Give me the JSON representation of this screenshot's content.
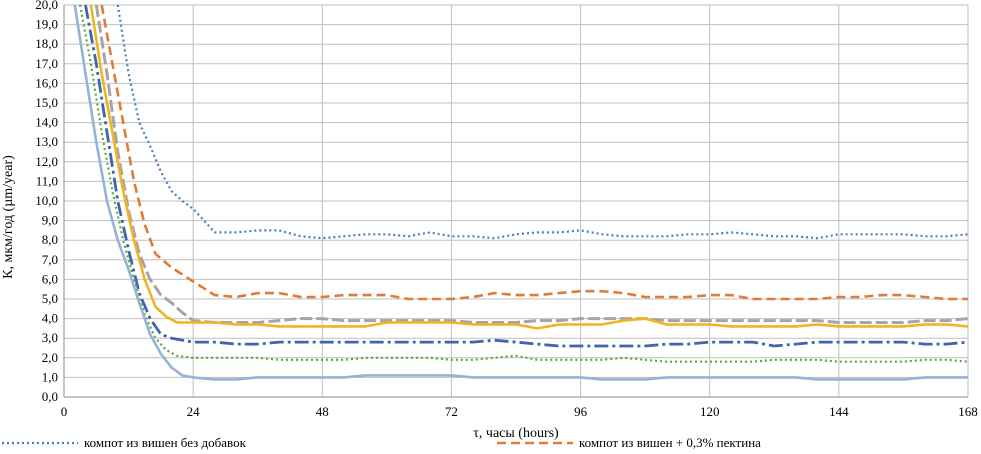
{
  "chart_data": {
    "type": "line",
    "xlabel": "τ, часы (hours)",
    "ylabel": "К, мкм/год (µm/year)",
    "xlim": [
      0,
      168
    ],
    "ylim": [
      0,
      20
    ],
    "x_ticks": [
      0,
      24,
      48,
      72,
      96,
      120,
      144,
      168
    ],
    "y_ticks": [
      "0,0",
      "1,0",
      "2,0",
      "3,0",
      "4,0",
      "5,0",
      "6,0",
      "7,0",
      "8,0",
      "9,0",
      "10,0",
      "11,0",
      "12,0",
      "13,0",
      "14,0",
      "15,0",
      "16,0",
      "17,0",
      "18,0",
      "19,0",
      "20,0"
    ],
    "grid": true,
    "legend_position": "bottom",
    "series": [
      {
        "name": "компот из вишен без добавок",
        "color": "#4a7ebb",
        "dash": "2,3",
        "width": 2.2,
        "legend_visible": true,
        "x": [
          10,
          12,
          14,
          16,
          18,
          20,
          22,
          24,
          26,
          28,
          32,
          36,
          40,
          44,
          48,
          52,
          56,
          60,
          64,
          68,
          72,
          76,
          80,
          84,
          88,
          92,
          96,
          100,
          104,
          108,
          112,
          116,
          120,
          124,
          128,
          132,
          136,
          140,
          144,
          148,
          152,
          156,
          160,
          164,
          168
        ],
        "values": [
          20,
          16.5,
          14,
          12.8,
          11.5,
          10.5,
          10,
          9.6,
          9,
          8.4,
          8.4,
          8.5,
          8.5,
          8.2,
          8.1,
          8.2,
          8.3,
          8.3,
          8.2,
          8.4,
          8.2,
          8.2,
          8.1,
          8.3,
          8.4,
          8.4,
          8.5,
          8.3,
          8.2,
          8.2,
          8.2,
          8.3,
          8.3,
          8.4,
          8.3,
          8.2,
          8.2,
          8.1,
          8.3,
          8.3,
          8.3,
          8.3,
          8.2,
          8.2,
          8.3
        ]
      },
      {
        "name": "компот из вишен + 0,3% пектина",
        "color": "#e07b39",
        "dash": "9,5",
        "width": 2.6,
        "legend_visible": true,
        "x": [
          7,
          9,
          11,
          13,
          15,
          17,
          20,
          24,
          28,
          32,
          36,
          40,
          44,
          48,
          52,
          56,
          60,
          64,
          68,
          72,
          76,
          80,
          84,
          88,
          92,
          96,
          100,
          104,
          108,
          112,
          116,
          120,
          124,
          128,
          132,
          136,
          140,
          144,
          148,
          152,
          156,
          160,
          164,
          168
        ],
        "values": [
          20,
          17,
          14,
          11,
          8.8,
          7.3,
          6.6,
          5.9,
          5.2,
          5.1,
          5.3,
          5.3,
          5.1,
          5.1,
          5.2,
          5.2,
          5.2,
          5.0,
          5.0,
          5.0,
          5.1,
          5.3,
          5.2,
          5.2,
          5.3,
          5.4,
          5.4,
          5.3,
          5.1,
          5.1,
          5.1,
          5.2,
          5.2,
          5.0,
          5.0,
          5.0,
          5.0,
          5.1,
          5.1,
          5.2,
          5.2,
          5.1,
          5.0,
          5.0
        ]
      },
      {
        "name": "",
        "color": "#a5a5a5",
        "dash": "12,4",
        "width": 3,
        "legend_visible": false,
        "x": [
          6,
          8,
          10,
          12,
          14,
          16,
          18,
          20,
          22,
          24,
          28,
          32,
          36,
          40,
          44,
          48,
          52,
          56,
          60,
          64,
          68,
          72,
          76,
          80,
          84,
          88,
          92,
          96,
          100,
          104,
          108,
          112,
          116,
          120,
          124,
          128,
          132,
          136,
          140,
          144,
          148,
          152,
          156,
          160,
          164,
          168
        ],
        "values": [
          20,
          16.5,
          12.5,
          9.5,
          7.3,
          6,
          5.2,
          4.8,
          4.3,
          3.9,
          3.8,
          3.8,
          3.8,
          3.9,
          4.0,
          4.0,
          3.9,
          3.9,
          3.9,
          3.9,
          3.9,
          3.9,
          3.8,
          3.8,
          3.8,
          3.9,
          3.9,
          4.0,
          4.0,
          4.0,
          4.0,
          3.9,
          3.9,
          3.9,
          3.9,
          3.9,
          3.9,
          3.9,
          3.9,
          3.8,
          3.8,
          3.8,
          3.8,
          3.9,
          3.9,
          4.0
        ]
      },
      {
        "name": "",
        "color": "#f0b323",
        "dash": "",
        "width": 2.6,
        "legend_visible": false,
        "x": [
          5,
          7,
          9,
          11,
          13,
          15,
          17,
          19,
          21,
          24,
          28,
          32,
          36,
          40,
          44,
          48,
          52,
          56,
          60,
          64,
          68,
          72,
          76,
          80,
          84,
          88,
          92,
          96,
          100,
          104,
          108,
          112,
          116,
          120,
          124,
          128,
          132,
          136,
          140,
          144,
          148,
          152,
          156,
          160,
          164,
          168
        ],
        "values": [
          20,
          16.5,
          13.5,
          10.5,
          8,
          6,
          4.6,
          4.1,
          3.8,
          3.8,
          3.8,
          3.7,
          3.7,
          3.6,
          3.6,
          3.6,
          3.6,
          3.6,
          3.8,
          3.8,
          3.8,
          3.8,
          3.7,
          3.7,
          3.7,
          3.5,
          3.7,
          3.7,
          3.7,
          3.9,
          4.0,
          3.7,
          3.7,
          3.7,
          3.6,
          3.6,
          3.6,
          3.6,
          3.7,
          3.6,
          3.6,
          3.6,
          3.6,
          3.7,
          3.7,
          3.6
        ]
      },
      {
        "name": "",
        "color": "#3f66aa",
        "dash": "14,4,3,4",
        "width": 2.8,
        "legend_visible": false,
        "x": [
          4,
          6,
          8,
          10,
          12,
          14,
          16,
          18,
          20,
          24,
          28,
          32,
          36,
          40,
          44,
          48,
          52,
          56,
          60,
          64,
          68,
          72,
          76,
          80,
          84,
          88,
          92,
          96,
          100,
          104,
          108,
          112,
          116,
          120,
          124,
          128,
          132,
          136,
          140,
          144,
          148,
          152,
          156,
          160,
          164,
          168
        ],
        "values": [
          20,
          17,
          13.5,
          10,
          7.5,
          5.3,
          4,
          3.2,
          3.0,
          2.8,
          2.8,
          2.7,
          2.7,
          2.8,
          2.8,
          2.8,
          2.8,
          2.8,
          2.8,
          2.8,
          2.8,
          2.8,
          2.8,
          2.9,
          2.8,
          2.7,
          2.6,
          2.6,
          2.6,
          2.6,
          2.6,
          2.7,
          2.7,
          2.8,
          2.8,
          2.8,
          2.6,
          2.7,
          2.8,
          2.8,
          2.8,
          2.8,
          2.8,
          2.7,
          2.7,
          2.8
        ]
      },
      {
        "name": "",
        "color": "#5ba640",
        "dash": "2,3",
        "width": 2.2,
        "legend_visible": false,
        "x": [
          3,
          5,
          7,
          9,
          11,
          13,
          15,
          17,
          19,
          21,
          24,
          28,
          32,
          36,
          40,
          44,
          48,
          52,
          56,
          60,
          64,
          68,
          72,
          76,
          80,
          84,
          88,
          92,
          96,
          100,
          104,
          108,
          112,
          116,
          120,
          124,
          128,
          132,
          136,
          140,
          144,
          148,
          152,
          156,
          160,
          164,
          168
        ],
        "values": [
          20,
          17,
          13.5,
          10.5,
          8,
          6,
          4.2,
          3.0,
          2.4,
          2.1,
          2.0,
          2.0,
          2.0,
          2.0,
          1.9,
          1.9,
          1.9,
          1.9,
          2.0,
          2.0,
          2.0,
          2.0,
          1.9,
          1.9,
          2.0,
          2.1,
          1.9,
          1.9,
          1.9,
          1.9,
          2.0,
          1.9,
          1.8,
          1.8,
          1.8,
          1.8,
          1.8,
          1.9,
          1.9,
          1.9,
          1.8,
          1.8,
          1.8,
          1.8,
          1.9,
          1.9,
          1.8
        ]
      },
      {
        "name": "",
        "color": "#95b3d7",
        "dash": "",
        "width": 2.6,
        "legend_visible": false,
        "x": [
          2,
          4,
          6,
          8,
          10,
          12,
          14,
          16,
          18,
          20,
          22,
          24,
          28,
          32,
          36,
          40,
          44,
          48,
          52,
          56,
          60,
          64,
          68,
          72,
          76,
          80,
          84,
          88,
          92,
          96,
          100,
          104,
          108,
          112,
          116,
          120,
          124,
          128,
          132,
          136,
          140,
          144,
          148,
          152,
          156,
          160,
          164,
          168
        ],
        "values": [
          20,
          16.5,
          13,
          10,
          8,
          6.5,
          4.8,
          3.2,
          2.2,
          1.5,
          1.1,
          1.0,
          0.9,
          0.9,
          1.0,
          1.0,
          1.0,
          1.0,
          1.0,
          1.1,
          1.1,
          1.1,
          1.1,
          1.1,
          1.0,
          1.0,
          1.0,
          1.0,
          1.0,
          1.0,
          0.9,
          0.9,
          0.9,
          1.0,
          1.0,
          1.0,
          1.0,
          1.0,
          1.0,
          1.0,
          0.9,
          0.9,
          0.9,
          0.9,
          0.9,
          1.0,
          1.0,
          1.0
        ]
      }
    ]
  }
}
